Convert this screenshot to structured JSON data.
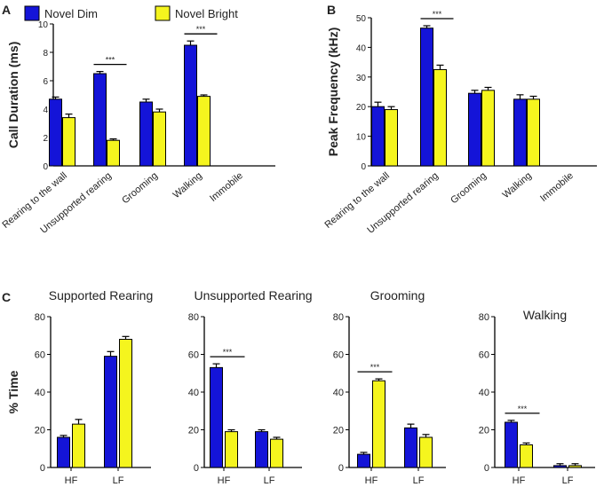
{
  "legend": [
    {
      "label": "Novel Dim",
      "color": "#1414d8"
    },
    {
      "label": "Novel Bright",
      "color": "#f5f51e"
    }
  ],
  "significance_label": "***",
  "chart_data": [
    {
      "panel": "A",
      "type": "bar",
      "title": "",
      "ylabel": "Call Duration (ms)",
      "ylim": [
        0,
        10
      ],
      "yticks": [
        0,
        2,
        4,
        6,
        8,
        10
      ],
      "categories": [
        "Rearing to the wall",
        "Unsupported rearing",
        "Grooming",
        "Walking",
        "Immobile"
      ],
      "series": [
        {
          "name": "Novel Dim",
          "values": [
            4.7,
            6.5,
            4.5,
            8.5,
            0
          ],
          "errors": [
            0.15,
            0.15,
            0.2,
            0.3,
            0
          ]
        },
        {
          "name": "Novel Bright",
          "values": [
            3.4,
            1.8,
            3.8,
            4.9,
            0
          ],
          "errors": [
            0.25,
            0.1,
            0.2,
            0.1,
            0
          ]
        }
      ],
      "significance": [
        {
          "category": 1,
          "label": "***"
        },
        {
          "category": 3,
          "label": "***"
        }
      ]
    },
    {
      "panel": "B",
      "type": "bar",
      "title": "",
      "ylabel": "Peak Frequency (kHz)",
      "ylim": [
        0,
        50
      ],
      "yticks": [
        0,
        10,
        20,
        30,
        40,
        50
      ],
      "categories": [
        "Rearing to the wall",
        "Unsupported rearing",
        "Grooming",
        "Walking",
        "Immobile"
      ],
      "series": [
        {
          "name": "Novel Dim",
          "values": [
            20,
            46.5,
            24.5,
            22.5,
            0
          ],
          "errors": [
            1.5,
            0.8,
            1.0,
            1.5,
            0
          ]
        },
        {
          "name": "Novel Bright",
          "values": [
            19,
            32.5,
            25.5,
            22.5,
            0
          ],
          "errors": [
            1.0,
            1.5,
            1.0,
            1.0,
            0
          ]
        }
      ],
      "significance": [
        {
          "category": 1,
          "label": "***"
        }
      ]
    },
    {
      "panel": "C",
      "type": "bar",
      "title": "Supported Rearing",
      "ylabel": "% Time",
      "ylim": [
        0,
        80
      ],
      "yticks": [
        0,
        20,
        40,
        60,
        80
      ],
      "categories": [
        "HF",
        "LF"
      ],
      "series": [
        {
          "name": "Novel Dim",
          "values": [
            16,
            59
          ],
          "errors": [
            1,
            2.5
          ]
        },
        {
          "name": "Novel Bright",
          "values": [
            23,
            68
          ],
          "errors": [
            2.5,
            1.5
          ]
        }
      ],
      "significance": []
    },
    {
      "panel": "",
      "type": "bar",
      "title": "Unsupported Rearing",
      "ylabel": "",
      "ylim": [
        0,
        80
      ],
      "yticks": [
        0,
        20,
        40,
        60,
        80
      ],
      "categories": [
        "HF",
        "LF"
      ],
      "series": [
        {
          "name": "Novel Dim",
          "values": [
            53,
            19
          ],
          "errors": [
            2,
            1
          ]
        },
        {
          "name": "Novel Bright",
          "values": [
            19,
            15
          ],
          "errors": [
            1,
            1
          ]
        }
      ],
      "significance": [
        {
          "category": 0,
          "label": "***"
        }
      ]
    },
    {
      "panel": "",
      "type": "bar",
      "title": "Grooming",
      "ylabel": "",
      "ylim": [
        0,
        80
      ],
      "yticks": [
        0,
        20,
        40,
        60,
        80
      ],
      "categories": [
        "HF",
        "LF"
      ],
      "series": [
        {
          "name": "Novel Dim",
          "values": [
            7,
            21
          ],
          "errors": [
            1,
            2
          ]
        },
        {
          "name": "Novel Bright",
          "values": [
            46,
            16
          ],
          "errors": [
            1,
            1.5
          ]
        }
      ],
      "significance": [
        {
          "category": 0,
          "label": "***"
        }
      ]
    },
    {
      "panel": "",
      "type": "bar",
      "title": "Walking",
      "ylabel": "",
      "ylim": [
        0,
        80
      ],
      "yticks": [
        0,
        20,
        40,
        60,
        80
      ],
      "categories": [
        "HF",
        "LF"
      ],
      "series": [
        {
          "name": "Novel Dim",
          "values": [
            24,
            1
          ],
          "errors": [
            1,
            1
          ]
        },
        {
          "name": "Novel Bright",
          "values": [
            12,
            1
          ],
          "errors": [
            1,
            1
          ]
        }
      ],
      "significance": [
        {
          "category": 0,
          "label": "***"
        }
      ]
    }
  ]
}
